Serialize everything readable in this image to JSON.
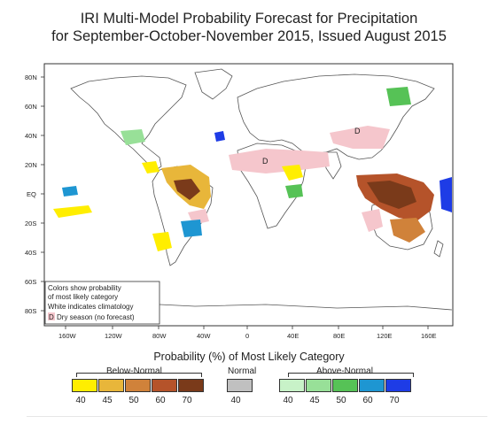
{
  "title_line1": "IRI Multi-Model Probability Forecast for Precipitation",
  "title_line2": "for September-October-November 2015, Issued August 2015",
  "map": {
    "lat_labels": [
      "80N",
      "60N",
      "40N",
      "20N",
      "EQ",
      "20S",
      "40S",
      "60S",
      "80S"
    ],
    "lon_labels": [
      "160W",
      "120W",
      "80W",
      "40W",
      "0",
      "40E",
      "80E",
      "120E",
      "160E"
    ],
    "dry_season_markers": [
      "D",
      "D"
    ],
    "info_box": {
      "line1": "Colors show probability",
      "line2": "of most likely category",
      "line3": "White indicates climatology",
      "dry_marker": "D",
      "line4": "Dry season (no forecast)"
    }
  },
  "legend": {
    "title": "Probability (%) of Most Likely Category",
    "below_label": "Below-Normal",
    "normal_label": "Normal",
    "above_label": "Above-Normal",
    "below_colors": [
      "#ffee00",
      "#e8b63a",
      "#d0823a",
      "#b5532a",
      "#7a3a1a"
    ],
    "normal_color": "#c0c0c0",
    "above_colors": [
      "#c8f2c8",
      "#98e098",
      "#56c256",
      "#1e96d2",
      "#1e3ce6"
    ],
    "below_ticks": [
      "40",
      "45",
      "50",
      "60",
      "70"
    ],
    "normal_ticks": [
      "40"
    ],
    "above_ticks": [
      "40",
      "45",
      "50",
      "60",
      "70"
    ]
  }
}
